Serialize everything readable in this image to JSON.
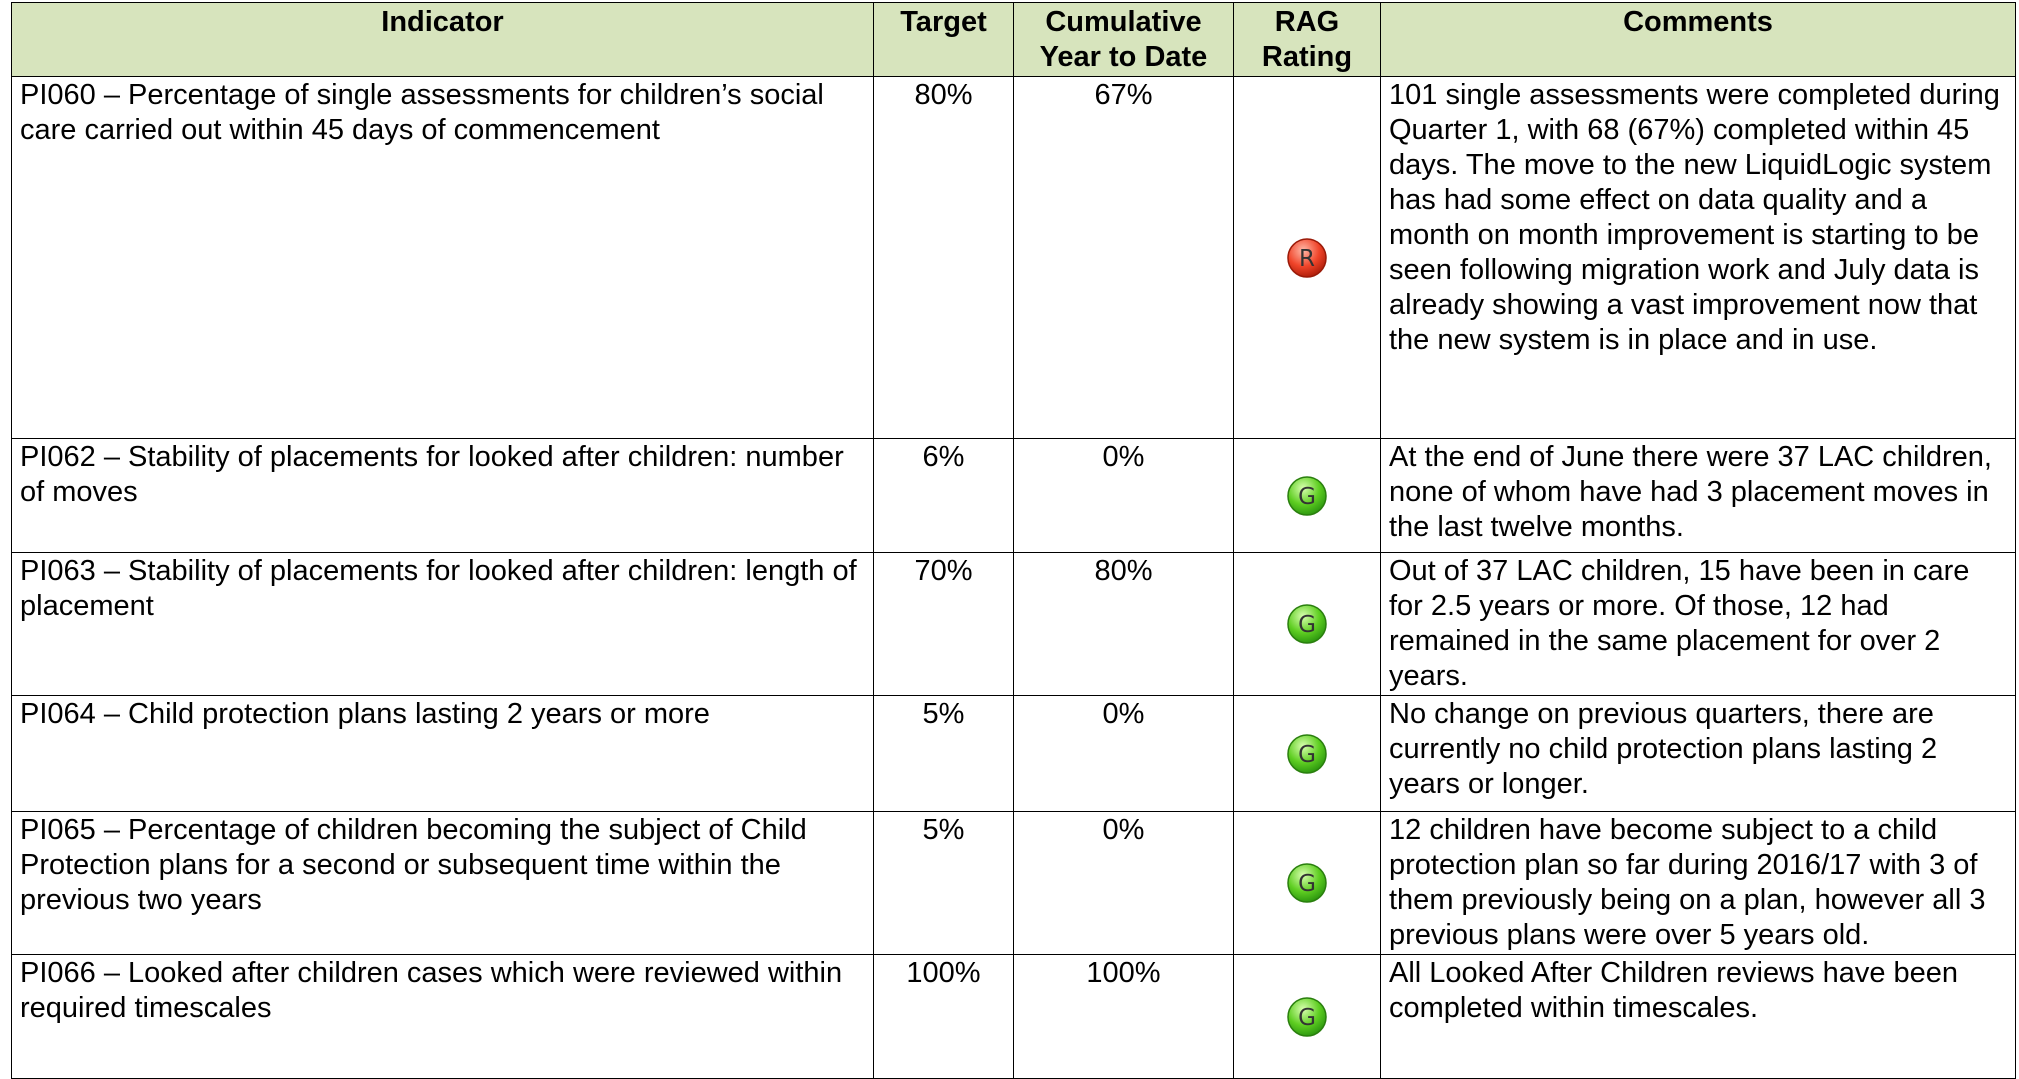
{
  "table": {
    "header": [
      "Indicator",
      "Target",
      "Cumulative Year to Date",
      "RAG Rating",
      "Comments"
    ],
    "rows": [
      [
        "PI060 – Percentage of single assessments for children’s social care carried out within 45 days of commencement",
        "80%",
        "67%",
        "R",
        "101 single assessments were completed during Quarter 1, with 68 (67%) completed within 45 days. The move to the new LiquidLogic system has had some effect on data quality and a month on month improvement is starting to be seen following migration work and July data is already showing a vast improvement now that the new system is in place and in use."
      ],
      [
        "PI062 – Stability of placements for looked after children: number of moves",
        "6%",
        "0%",
        "G",
        "At the end of June there were 37 LAC children, none of whom have had 3 placement moves in the last twelve months."
      ],
      [
        "PI063 – Stability of placements for looked after children: length of placement",
        "70%",
        "80%",
        "G",
        "Out of 37 LAC children, 15 have been in care for 2.5 years or more. Of those, 12 had remained in the same placement for over 2 years."
      ],
      [
        "PI064 – Child protection plans lasting 2 years or more",
        "5%",
        "0%",
        "G",
        "No change on previous quarters, there are currently no child protection plans lasting 2 years or longer."
      ],
      [
        "PI065 – Percentage of children becoming the subject of Child Protection plans for a second or subsequent time within the previous two years",
        "5%",
        "0%",
        "G",
        "12 children have become subject to a child protection plan so far during 2016/17 with 3 of them previously being on a plan, however all 3 previous plans were over 5 years old."
      ],
      [
        "PI066 – Looked after children cases which were reviewed within required timescales",
        "100%",
        "100%",
        "G",
        "All Looked After Children reviews have been completed within timescales."
      ]
    ]
  }
}
